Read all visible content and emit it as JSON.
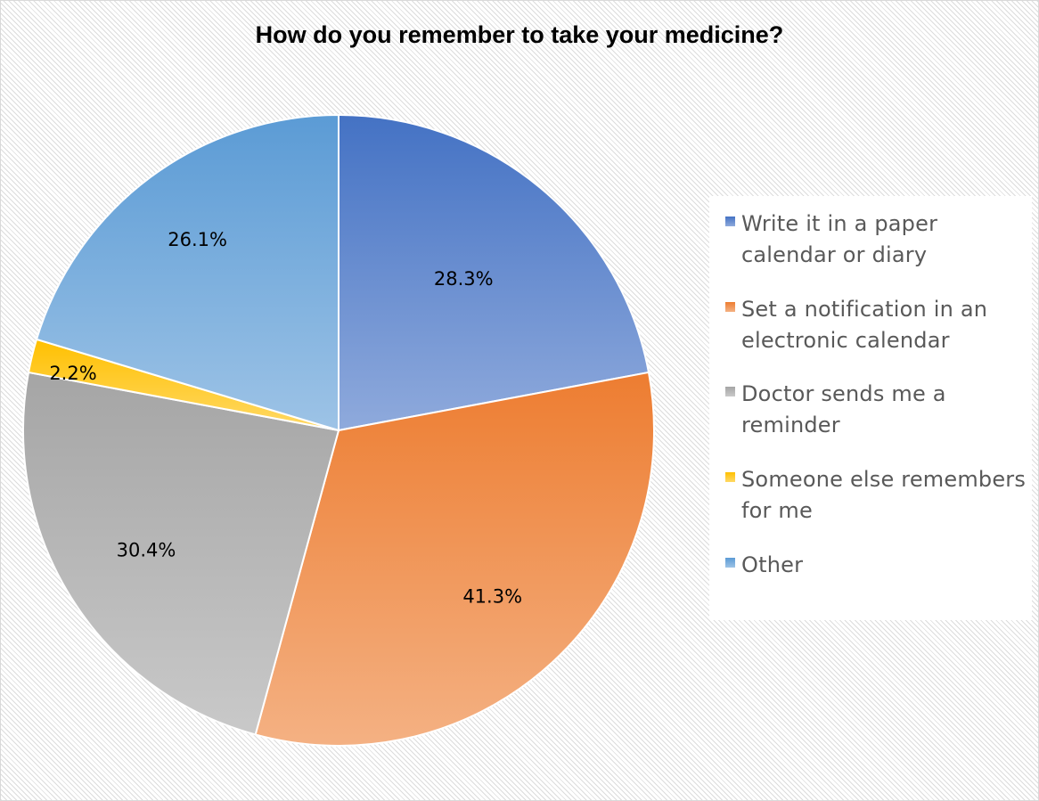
{
  "chart_data": {
    "type": "pie",
    "title": "How do you remember to take your medicine?",
    "legend_position": "right",
    "start_angle_deg": 0,
    "direction": "clockwise",
    "slices": [
      {
        "label": "Write it in a paper calendar or diary",
        "value": 28.3,
        "value_label": "28.3%",
        "color": "#4472c4",
        "color_light": "#8faadc"
      },
      {
        "label": "Set a notification in an electronic calendar",
        "value": 41.3,
        "value_label": "41.3%",
        "color": "#ed7d31",
        "color_light": "#f4b183"
      },
      {
        "label": "Doctor sends me a reminder",
        "value": 30.4,
        "value_label": "30.4%",
        "color": "#a5a5a5",
        "color_light": "#c9c9c9"
      },
      {
        "label": "Someone else remembers for me",
        "value": 2.2,
        "value_label": "2.2%",
        "color": "#ffc000",
        "color_light": "#ffd966"
      },
      {
        "label": "Other",
        "value": 26.1,
        "value_label": "26.1%",
        "color": "#5b9bd5",
        "color_light": "#9dc3e6"
      }
    ]
  }
}
